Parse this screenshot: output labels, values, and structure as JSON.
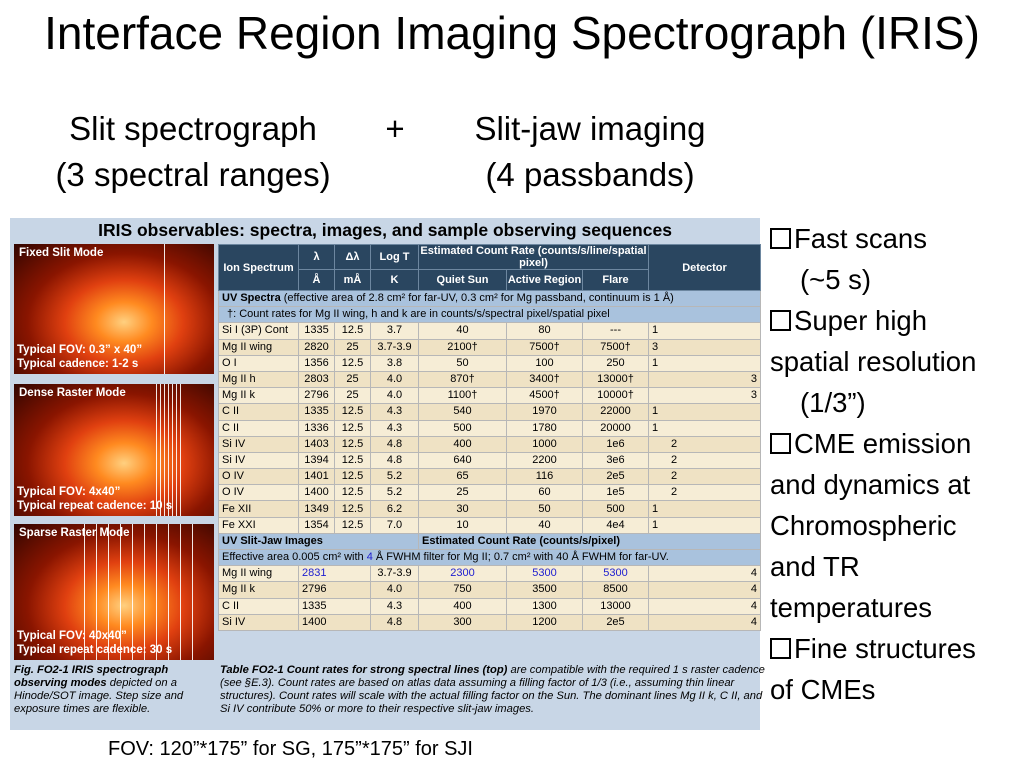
{
  "slide_title": "Interface Region Imaging Spectrograph (IRIS)",
  "subtitle": {
    "left_line1": "Slit spectrograph",
    "left_line2": "(3 spectral ranges)",
    "plus": "+",
    "right_line1": "Slit-jaw imaging",
    "right_line2": "(4 passbands)"
  },
  "figure": {
    "title": "IRIS observables: spectra, images, and sample observing sequences",
    "panels": [
      {
        "label": "Fixed Slit Mode",
        "info1": "Typical FOV: 0.3” x 40”",
        "info2": "Typical cadence: 1-2 s"
      },
      {
        "label": "Dense Raster Mode",
        "info1": "Typical FOV: 4x40”",
        "info2": "Typical repeat cadence: 10 s"
      },
      {
        "label": "Sparse Raster Mode",
        "info1": "Typical FOV: 40x40”",
        "info2": "Typical repeat cadence: 30 s"
      }
    ],
    "caption_bold": "Fig. FO2-1 IRIS spectrograph observing modes",
    "caption_rest": " depicted on a Hinode/SOT image. Step size and exposure times are flexible.",
    "table_caption_bold": "Table FO2-1 Count rates for strong spectral lines (top)",
    "table_caption_rest": " are compatible with the required 1 s raster cadence (see §E.3). Count rates are based on atlas data assuming a filling factor of 1/3 (i.e., assuming thin linear structures). Count rates will scale with the actual filling factor on the Sun. The dominant lines Mg II k, C II, and Si IV contribute 50% or more to their respective slit-jaw images."
  },
  "table": {
    "headers": {
      "ion_spectrum": "Ion Spectrum",
      "lambda": "λ",
      "dlambda": "Δλ",
      "logt": "Log T",
      "est_rate": "Estimated Count Rate (counts/s/line/spatial pixel)",
      "detector": "Detector",
      "unit_lambda": "Å",
      "unit_dlambda": "mÅ",
      "unit_logt": "K",
      "quiet_sun": "Quiet Sun",
      "active_region": "Active Region",
      "flare": "Flare"
    },
    "uv_spectra_title": "UV Spectra",
    "uv_spectra_note": " (effective area of 2.8 cm² for far-UV, 0.3 cm² for Mg passband, continuum is 1 Å)",
    "uv_spectra_note2": "†: Count rates for Mg II wing, h and k are in counts/s/spectral pixel/spatial pixel",
    "spectra_rows": [
      {
        "ion": "Si I (3P) Cont",
        "lambda": "1335",
        "dl": "12.5",
        "logt": "3.7",
        "qs": "40",
        "ar": "80",
        "fl": "---",
        "det": "1",
        "det_pos": "left"
      },
      {
        "ion": "Mg II wing",
        "lambda": "2820",
        "dl": "25",
        "logt": "3.7-3.9",
        "qs": "2100†",
        "ar": "7500†",
        "fl": "7500†",
        "det": "3",
        "det_pos": "left"
      },
      {
        "ion": "O I",
        "lambda": "1356",
        "dl": "12.5",
        "logt": "3.8",
        "qs": "50",
        "ar": "100",
        "fl": "250",
        "det": "1",
        "det_pos": "left"
      },
      {
        "ion": "Mg II h",
        "lambda": "2803",
        "dl": "25",
        "logt": "4.0",
        "qs": "870†",
        "ar": "3400†",
        "fl": "13000†",
        "det": "3",
        "det_pos": "right"
      },
      {
        "ion": "Mg II k",
        "lambda": "2796",
        "dl": "25",
        "logt": "4.0",
        "qs": "1100†",
        "ar": "4500†",
        "fl": "10000†",
        "det": "3",
        "det_pos": "right"
      },
      {
        "ion": "C II",
        "lambda": "1335",
        "dl": "12.5",
        "logt": "4.3",
        "qs": "540",
        "ar": "1970",
        "fl": "22000",
        "det": "1",
        "det_pos": "left"
      },
      {
        "ion": "C II",
        "lambda": "1336",
        "dl": "12.5",
        "logt": "4.3",
        "qs": "500",
        "ar": "1780",
        "fl": "20000",
        "det": "1",
        "det_pos": "left"
      },
      {
        "ion": "Si IV",
        "lambda": "1403",
        "dl": "12.5",
        "logt": "4.8",
        "qs": "400",
        "ar": "1000",
        "fl": "1e6",
        "det": "2",
        "det_pos": "mid"
      },
      {
        "ion": "Si IV",
        "lambda": "1394",
        "dl": "12.5",
        "logt": "4.8",
        "qs": "640",
        "ar": "2200",
        "fl": "3e6",
        "det": "2",
        "det_pos": "mid"
      },
      {
        "ion": "O IV",
        "lambda": "1401",
        "dl": "12.5",
        "logt": "5.2",
        "qs": "65",
        "ar": "116",
        "fl": "2e5",
        "det": "2",
        "det_pos": "mid"
      },
      {
        "ion": "O IV",
        "lambda": "1400",
        "dl": "12.5",
        "logt": "5.2",
        "qs": "25",
        "ar": "60",
        "fl": "1e5",
        "det": "2",
        "det_pos": "mid"
      },
      {
        "ion": "Fe XII",
        "lambda": "1349",
        "dl": "12.5",
        "logt": "6.2",
        "qs": "30",
        "ar": "50",
        "fl": "500",
        "det": "1",
        "det_pos": "left"
      },
      {
        "ion": "Fe XXI",
        "lambda": "1354",
        "dl": "12.5",
        "logt": "7.0",
        "qs": "10",
        "ar": "40",
        "fl": "4e4",
        "det": "1",
        "det_pos": "left"
      }
    ],
    "sji_title": "UV Slit-Jaw Images",
    "sji_rate_title": "Estimated Count Rate (counts/s/pixel)",
    "sji_note_a": "Effective area 0.005 cm² with ",
    "sji_note_4": "4",
    "sji_note_b": " Å FWHM filter for Mg II; 0.7 cm²  with 40 Å FWHM for far-UV.",
    "sji_rows": [
      {
        "ion": "Mg II wing",
        "lambda": "2831",
        "logt": "3.7-3.9",
        "qs": "2300",
        "ar": "5300",
        "fl": "5300",
        "det": "4",
        "blue": true
      },
      {
        "ion": "Mg II k",
        "lambda": "2796",
        "logt": "4.0",
        "qs": "750",
        "ar": "3500",
        "fl": "8500",
        "det": "4",
        "blue": false
      },
      {
        "ion": "C II",
        "lambda": "1335",
        "logt": "4.3",
        "qs": "400",
        "ar": "1300",
        "fl": "13000",
        "det": "4",
        "blue": false
      },
      {
        "ion": "Si IV",
        "lambda": "1400",
        "logt": "4.8",
        "qs": "300",
        "ar": "1200",
        "fl": "2e5",
        "det": "4",
        "blue": false
      }
    ]
  },
  "bullets": [
    {
      "line1": "Fast scans",
      "line2": "(~5 s)"
    },
    {
      "line1": "Super high",
      "line2": "spatial resolution",
      "line3": "(1/3”)"
    },
    {
      "line1": "CME emission",
      "line2": "and dynamics at",
      "line3": "Chromospheric",
      "line4": "and TR",
      "line5": "temperatures"
    },
    {
      "line1": "Fine structures",
      "line2": "of CMEs"
    }
  ],
  "footer": "FOV: 120”*175” for SG, 175”*175” for SJI"
}
